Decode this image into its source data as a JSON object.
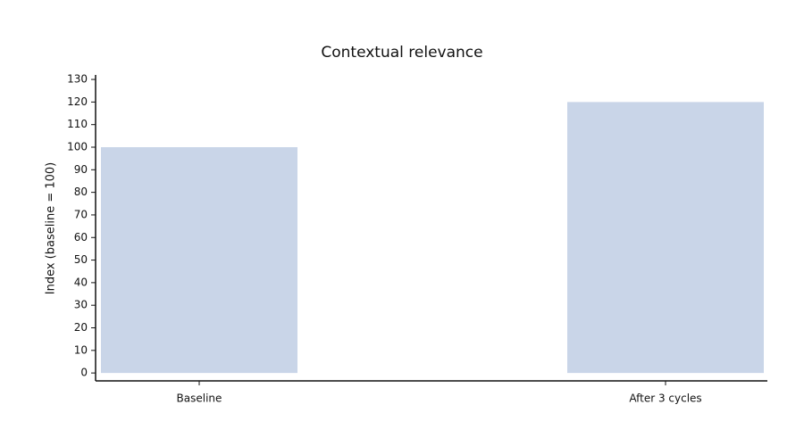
{
  "chart_data": {
    "type": "bar",
    "title": "Contextual relevance",
    "ylabel": "Index (baseline = 100)",
    "categories": [
      "Baseline",
      "After 3 cycles"
    ],
    "values": [
      100,
      120
    ],
    "color": "#c9d5e8",
    "ylim": [
      -3.5,
      132
    ],
    "yticks": [
      0,
      10,
      20,
      30,
      40,
      50,
      60,
      70,
      80,
      90,
      100,
      110,
      120,
      130
    ],
    "grid": false
  }
}
